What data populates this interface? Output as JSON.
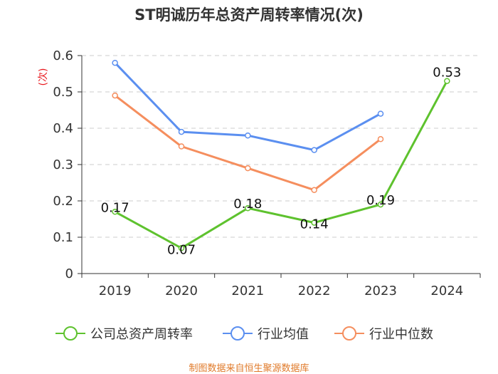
{
  "chart_data": {
    "type": "line",
    "title": "ST明诚历年总资产周转率情况(次)",
    "ylabel": "(次)",
    "xlabel": "",
    "categories": [
      "2019",
      "2020",
      "2021",
      "2022",
      "2023",
      "2024"
    ],
    "ylim": [
      0,
      0.6
    ],
    "yticks": [
      "0",
      "0.1",
      "0.2",
      "0.3",
      "0.4",
      "0.5",
      "0.6"
    ],
    "grid": true,
    "legend_position": "bottom",
    "series": [
      {
        "name": "公司总资产周转率",
        "color": "#5ec22e",
        "values": [
          0.17,
          0.07,
          0.18,
          0.14,
          0.19,
          0.53
        ],
        "labels": [
          "0.17",
          "0.07",
          "0.18",
          "0.14",
          "0.19",
          "0.53"
        ]
      },
      {
        "name": "行业均值",
        "color": "#5b8ff0",
        "values": [
          0.58,
          0.39,
          0.38,
          0.34,
          0.44,
          null
        ]
      },
      {
        "name": "行业中位数",
        "color": "#f58e5e",
        "values": [
          0.49,
          0.35,
          0.29,
          0.23,
          0.37,
          null
        ]
      }
    ],
    "source": "制图数据来自恒生聚源数据库"
  }
}
